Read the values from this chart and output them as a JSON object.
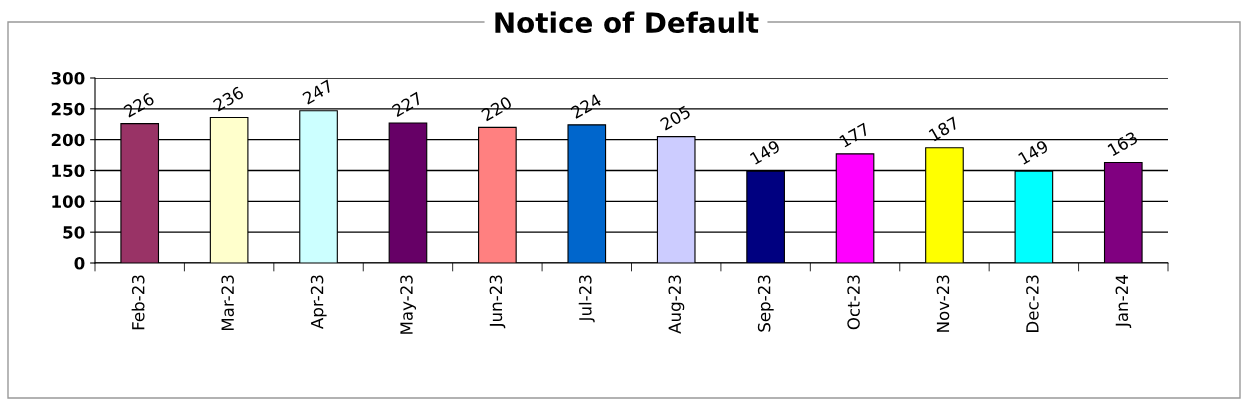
{
  "chart_data": {
    "type": "bar",
    "title": "Notice of Default",
    "categories": [
      "Feb-23",
      "Mar-23",
      "Apr-23",
      "May-23",
      "Jun-23",
      "Jul-23",
      "Aug-23",
      "Sep-23",
      "Oct-23",
      "Nov-23",
      "Dec-23",
      "Jan-24"
    ],
    "values": [
      226,
      236,
      247,
      227,
      220,
      224,
      205,
      149,
      177,
      187,
      149,
      163
    ],
    "colors": [
      "#993366",
      "#ffffcc",
      "#ccffff",
      "#660066",
      "#ff8080",
      "#0066cc",
      "#ccccff",
      "#000080",
      "#ff00ff",
      "#ffff00",
      "#00ffff",
      "#800080"
    ],
    "ylim": [
      0,
      300
    ],
    "yticks": [
      0,
      50,
      100,
      150,
      200,
      250,
      300
    ],
    "grid": "y",
    "data_labels": true,
    "legend": false
  }
}
